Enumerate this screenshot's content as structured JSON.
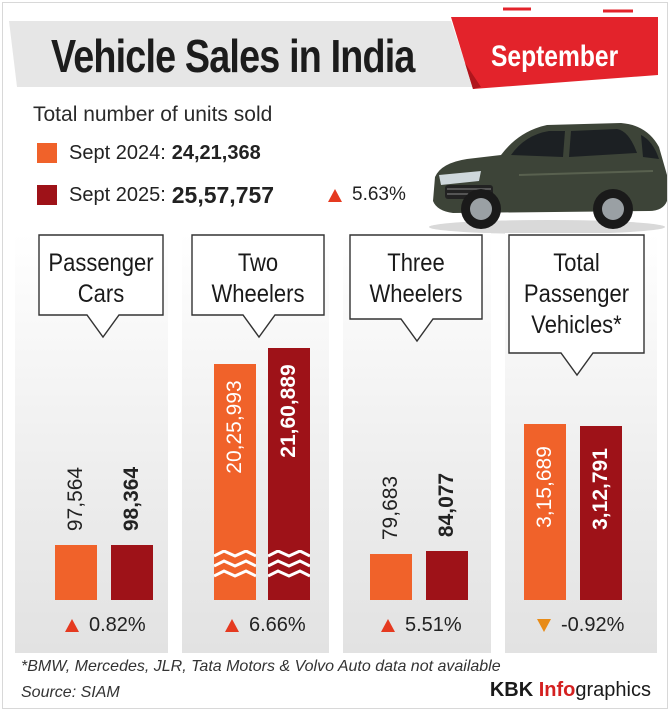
{
  "header": {
    "title": "Vehicle Sales in India",
    "month": "September"
  },
  "summary": {
    "subtitle": "Total number of units sold",
    "legend": [
      {
        "label": "Sept 2024:",
        "total": "24,21,368",
        "color": "#f0622a"
      },
      {
        "label": "Sept 2025:",
        "total": "25,57,757",
        "color": "#9e1218"
      }
    ],
    "overall_change": "5.63%"
  },
  "colors": {
    "sept_2024": "#f0622a",
    "sept_2025": "#9e1218",
    "up_arrow": "#e53a20",
    "down_arrow": "#e88b17",
    "title_ribbon": "#e3232b"
  },
  "chart_data": {
    "type": "bar",
    "categories": [
      "Passenger Cars",
      "Two Wheelers",
      "Three Wheelers",
      "Total Passenger Vehicles*"
    ],
    "category_lines": [
      [
        "Passenger",
        "Cars"
      ],
      [
        "Two",
        "Wheelers"
      ],
      [
        "Three",
        "Wheelers"
      ],
      [
        "Total",
        "Passenger",
        "Vehicles*"
      ]
    ],
    "series": [
      {
        "name": "Sept 2024",
        "values": [
          97564,
          2025993,
          79683,
          315689
        ],
        "labels": [
          "97,564",
          "20,25,993",
          "79,683",
          "3,15,689"
        ]
      },
      {
        "name": "Sept 2025",
        "values": [
          98364,
          2160889,
          84077,
          312791
        ],
        "labels": [
          "98,364",
          "21,60,889",
          "84,077",
          "3,12,791"
        ]
      }
    ],
    "changes": [
      {
        "text": "0.82%",
        "direction": "up"
      },
      {
        "text": "6.66%",
        "direction": "up"
      },
      {
        "text": "5.51%",
        "direction": "up"
      },
      {
        "text": "-0.92%",
        "direction": "down"
      }
    ],
    "two_wheelers_axis_break": true
  },
  "footer": {
    "footnote": "*BMW, Mercedes, JLR, Tata Motors & Volvo Auto data not available",
    "source": "Source: SIAM",
    "brand": {
      "part1": "KBK ",
      "part2": "Info",
      "part3": "graphics"
    }
  }
}
